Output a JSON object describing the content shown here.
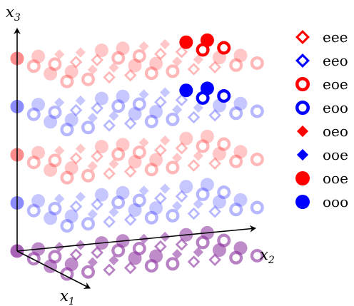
{
  "axes": {
    "x1": {
      "base": "x",
      "sub": "1"
    },
    "x2": {
      "base": "x",
      "sub": "2"
    },
    "x3": {
      "base": "x",
      "sub": "3"
    }
  },
  "colors": {
    "red": "#ff0000",
    "blue": "#0000ff",
    "purple": "#8a2e9e"
  },
  "legend": [
    {
      "label": "eee",
      "marker": "diamond-open",
      "color": "red"
    },
    {
      "label": "eeo",
      "marker": "diamond-open",
      "color": "blue"
    },
    {
      "label": "eoe",
      "marker": "circle-open",
      "color": "red"
    },
    {
      "label": "eoo",
      "marker": "circle-open",
      "color": "blue"
    },
    {
      "label": "oeo",
      "marker": "diamond-filled",
      "color": "red"
    },
    {
      "label": "ooe",
      "marker": "diamond-filled",
      "color": "blue"
    },
    {
      "label": "ooe",
      "marker": "circle-filled",
      "color": "red"
    },
    {
      "label": "ooo",
      "marker": "circle-filled",
      "color": "blue"
    }
  ],
  "grid": {
    "x1_count": 4,
    "x2_count": 10,
    "x3_levels": [
      "red",
      "blue",
      "red",
      "blue",
      "purple"
    ],
    "highlighted_level": 0,
    "highlighted_x2": [
      8,
      9
    ]
  }
}
